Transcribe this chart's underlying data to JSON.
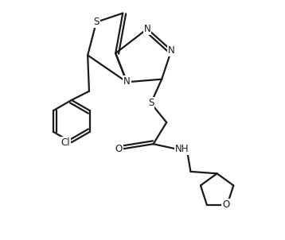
{
  "bg_color": "#ffffff",
  "line_color": "#1a1a1a",
  "line_width": 1.6,
  "font_size": 8.5,
  "figsize": [
    3.58,
    3.02
  ],
  "dpi": 100,
  "xlim": [
    0.0,
    1.0
  ],
  "ylim": [
    0.0,
    1.0
  ]
}
